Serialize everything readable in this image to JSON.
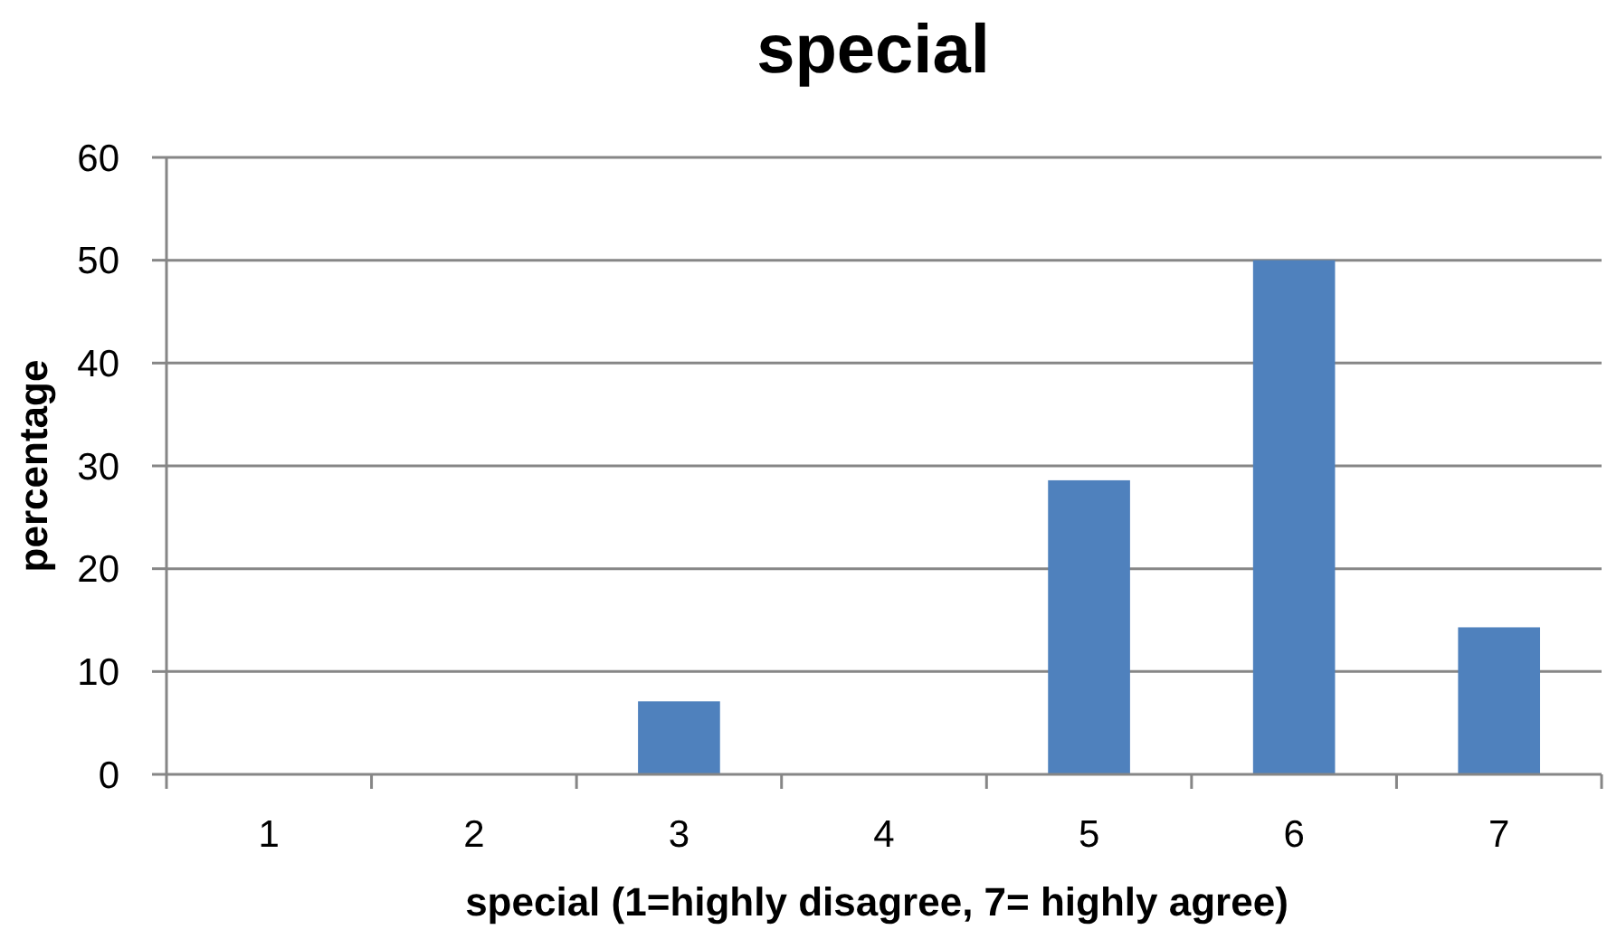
{
  "chart_data": {
    "type": "bar",
    "title": "special",
    "xlabel": "special (1=highly disagree, 7= highly agree)",
    "ylabel": "percentage",
    "categories": [
      "1",
      "2",
      "3",
      "4",
      "5",
      "6",
      "7"
    ],
    "values": [
      0,
      0,
      7.1,
      0,
      28.6,
      50,
      14.3
    ],
    "color": "#4f81bd",
    "ylim": [
      0,
      60
    ],
    "yticks": [
      0,
      10,
      20,
      30,
      40,
      50,
      60
    ],
    "grid": "y"
  }
}
